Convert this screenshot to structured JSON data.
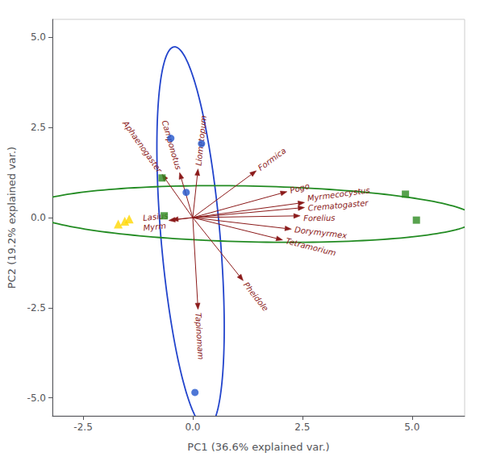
{
  "chart_data": {
    "type": "scatter",
    "xlabel": "PC1 (36.6% explained var.)",
    "ylabel": "PC2 (19.2% explained var.)",
    "xlim": [
      -3.2,
      6.2
    ],
    "ylim": [
      -5.5,
      5.5
    ],
    "xticks": [
      -2.5,
      {
        "value": 0,
        "label": "0.0"
      },
      2.5,
      {
        "value": 5,
        "label": "5.0"
      }
    ],
    "yticks": [
      {
        "value": -5,
        "label": "-5.0"
      },
      -2.5,
      {
        "value": 0,
        "label": "0.0"
      },
      2.5,
      {
        "value": 5,
        "label": "5.0"
      }
    ],
    "grid": false,
    "ellipses": [
      {
        "center_x": -0.05,
        "center_y": -0.55,
        "width": 1.35,
        "height": 10.6,
        "angle": 4,
        "color": "#2244CC"
      },
      {
        "center_x": 1.35,
        "center_y": 0.1,
        "width": 10.2,
        "height": 1.55,
        "angle": -1.5,
        "color": "#228B22"
      }
    ],
    "series": [
      {
        "type": "arrow",
        "color": "#8B1A1A",
        "values": [
          [
            -0.7,
            1.2
          ],
          [
            -0.3,
            1.25
          ],
          [
            0.12,
            1.35
          ],
          [
            1.45,
            1.3
          ],
          [
            2.15,
            0.72
          ],
          [
            2.55,
            0.42
          ],
          [
            2.55,
            0.28
          ],
          [
            2.45,
            0.05
          ],
          [
            2.25,
            -0.32
          ],
          [
            2.05,
            -0.62
          ],
          [
            1.15,
            -1.75
          ],
          [
            0.12,
            -2.55
          ],
          [
            -0.55,
            -0.08
          ],
          [
            -0.48,
            -0.06
          ]
        ],
        "labels": [
          "Aphaenogaster",
          "Camponotus",
          "Liometopum",
          "Formica",
          "Pogo",
          "Myrmecocystus",
          "Crematogaster",
          "Forelius",
          "Dorymyrmex",
          "Tetramorium",
          "Pheidole",
          "Tapinomam",
          "Myrm",
          "Lasius"
        ]
      },
      {
        "type": "scatter",
        "color": "#2255CC",
        "marker": "circle",
        "values": [
          [
            -0.5,
            2.2
          ],
          [
            0.2,
            2.05
          ],
          [
            -0.15,
            0.7
          ],
          [
            0.05,
            -4.85
          ]
        ]
      },
      {
        "type": "scatter",
        "color": "#2E8B22",
        "marker": "square",
        "values": [
          [
            -0.7,
            1.1
          ],
          [
            -0.65,
            0.05
          ],
          [
            4.85,
            0.65
          ],
          [
            5.1,
            -0.07
          ]
        ]
      },
      {
        "type": "scatter",
        "color": "#FFD700",
        "marker": "triangle",
        "values": [
          [
            -1.55,
            -0.1
          ],
          [
            -1.7,
            -0.18
          ],
          [
            -1.45,
            -0.04
          ]
        ]
      }
    ]
  }
}
